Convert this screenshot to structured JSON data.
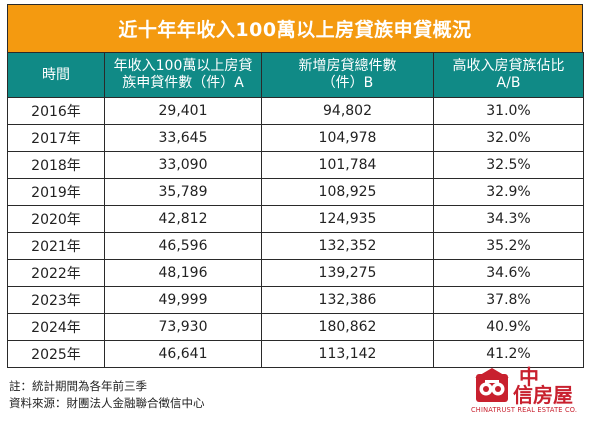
{
  "title": "近十年年收入100萬以上房貸族申貸概況",
  "header": {
    "col1": "時間",
    "col2_line1": "年收入100萬以上房貸",
    "col2_line2": "族申貸件數（件）A",
    "col3_line1": "新增房貸總件數",
    "col3_line2": "（件）B",
    "col4_line1": "高收入房貸族佔比",
    "col4_line2": "A/B"
  },
  "rows": [
    {
      "year": "2016年",
      "a": "29,401",
      "b": "94,802",
      "ratio": "31.0%"
    },
    {
      "year": "2017年",
      "a": "33,645",
      "b": "104,978",
      "ratio": "32.0%"
    },
    {
      "year": "2018年",
      "a": "33,090",
      "b": "101,784",
      "ratio": "32.5%"
    },
    {
      "year": "2019年",
      "a": "35,789",
      "b": "108,925",
      "ratio": "32.9%"
    },
    {
      "year": "2020年",
      "a": "42,812",
      "b": "124,935",
      "ratio": "34.3%"
    },
    {
      "year": "2021年",
      "a": "46,596",
      "b": "132,352",
      "ratio": "35.2%"
    },
    {
      "year": "2022年",
      "a": "48,196",
      "b": "139,275",
      "ratio": "34.6%"
    },
    {
      "year": "2023年",
      "a": "49,999",
      "b": "132,386",
      "ratio": "37.8%"
    },
    {
      "year": "2024年",
      "a": "73,930",
      "b": "180,862",
      "ratio": "40.9%"
    },
    {
      "year": "2025年",
      "a": "46,641",
      "b": "113,142",
      "ratio": "41.2%"
    }
  ],
  "notes": {
    "note": "註：統計期間為各年前三季",
    "source": "資料來源：財團法人金融聯合徵信中心"
  },
  "logo": {
    "zh_line1": "中",
    "zh_line2": "信房屋",
    "en": "CHINATRUST REAL ESTATE CO."
  },
  "colors": {
    "title_bg": "#f49a10",
    "header_bg": "#108a86",
    "brand_red": "#c8202e"
  }
}
